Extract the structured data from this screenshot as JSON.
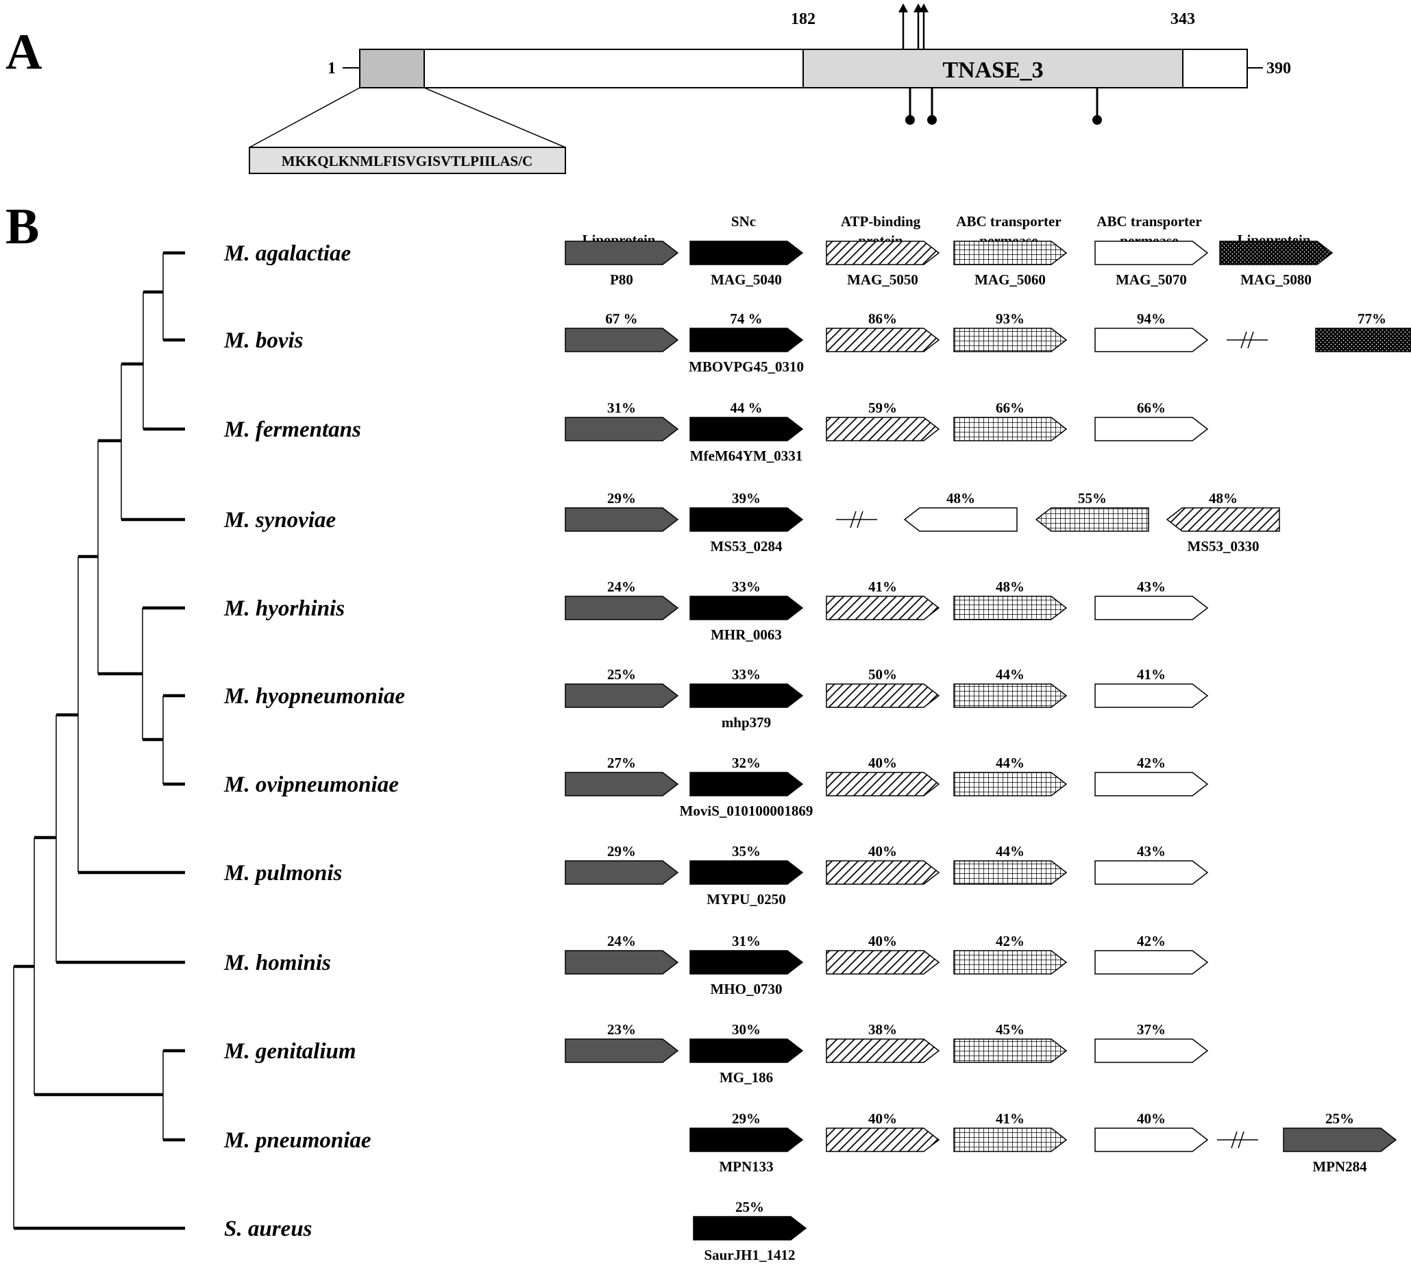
{
  "panels": {
    "a": "A",
    "b": "B"
  },
  "domain_map": {
    "start": "1",
    "end": "390",
    "domain_start": "182",
    "domain_end": "343",
    "domain_name": "TNASE_3",
    "signal_peptide": "MKKQLKNMLFISVGISVTLPIILAS/C"
  },
  "gene_headers": [
    "Lipoprotein",
    "SNc",
    "ATP-binding protein",
    "ABC transporter permease",
    "ABC transporter permease",
    "Lipoprotein"
  ],
  "colors": {
    "lipoprotein": "#555555",
    "snc": "#000000",
    "outline": "#000000"
  },
  "species": [
    {
      "name": "M. agalactiae",
      "pcts": [
        "",
        "",
        "",
        "",
        "",
        ""
      ],
      "genes": [
        "P80",
        "MAG_5040",
        "MAG_5050",
        "MAG_5060",
        "MAG_5070",
        "MAG_5080"
      ]
    },
    {
      "name": "M. bovis",
      "pcts": [
        "67 %",
        "74 %",
        "86%",
        "93%",
        "94%",
        "77%"
      ],
      "genes": [
        "MBOVPG45_0310"
      ]
    },
    {
      "name": "M. fermentans",
      "pcts": [
        "31%",
        "44 %",
        "59%",
        "66%",
        "66%"
      ],
      "genes": [
        "MfeM64YM_0331"
      ]
    },
    {
      "name": "M. synoviae",
      "pcts": [
        "29%",
        "39%",
        "48%",
        "55%",
        "48%"
      ],
      "genes": [
        "MS53_0284",
        "MS53_0330"
      ]
    },
    {
      "name": "M. hyorhinis",
      "pcts": [
        "24%",
        "33%",
        "41%",
        "48%",
        "43%"
      ],
      "genes": [
        "MHR_0063"
      ]
    },
    {
      "name": "M. hyopneumoniae",
      "pcts": [
        "25%",
        "33%",
        "50%",
        "44%",
        "41%"
      ],
      "genes": [
        "mhp379"
      ]
    },
    {
      "name": "M. ovipneumoniae",
      "pcts": [
        "27%",
        "32%",
        "40%",
        "44%",
        "42%"
      ],
      "genes": [
        "MoviS_010100001869"
      ]
    },
    {
      "name": "M. pulmonis",
      "pcts": [
        "29%",
        "35%",
        "40%",
        "44%",
        "43%"
      ],
      "genes": [
        "MYPU_0250"
      ]
    },
    {
      "name": "M. hominis",
      "pcts": [
        "24%",
        "31%",
        "40%",
        "42%",
        "42%"
      ],
      "genes": [
        "MHO_0730"
      ]
    },
    {
      "name": "M. genitalium",
      "pcts": [
        "23%",
        "30%",
        "38%",
        "45%",
        "37%"
      ],
      "genes": [
        "MG_186"
      ]
    },
    {
      "name": "M. pneumoniae",
      "pcts": [
        "29%",
        "40%",
        "41%",
        "40%",
        "25%"
      ],
      "genes": [
        "MPN133",
        "MPN284"
      ]
    },
    {
      "name": "S. aureus",
      "pcts": [
        "25%"
      ],
      "genes": [
        "SaurJH1_1412"
      ]
    }
  ]
}
